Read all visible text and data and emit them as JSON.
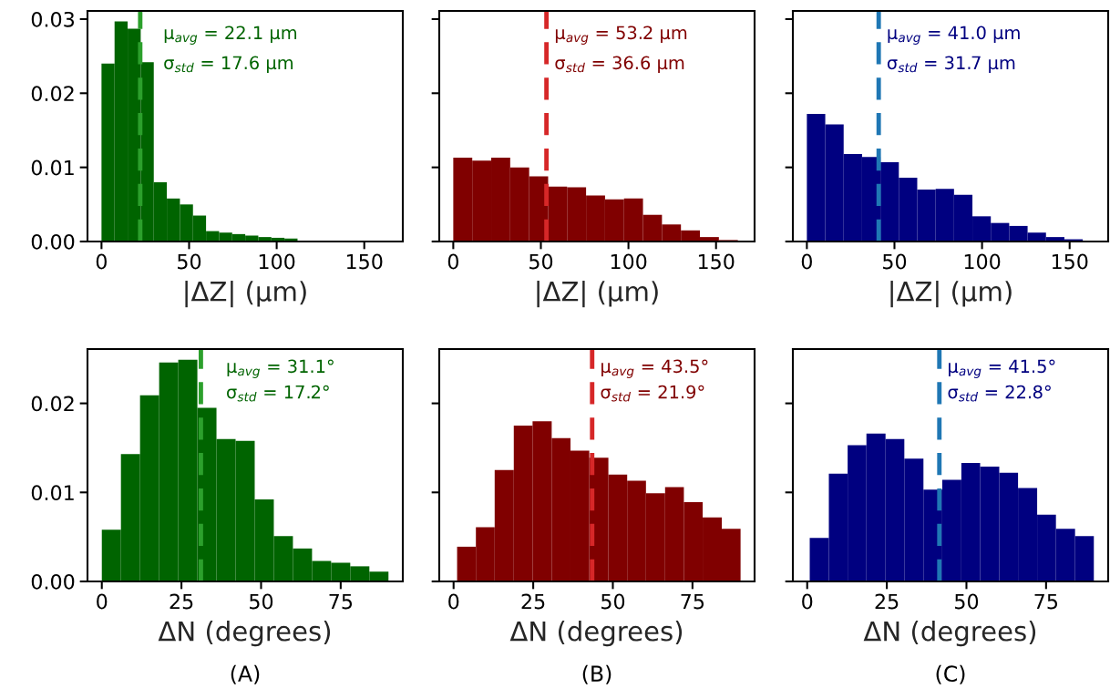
{
  "chart_data": [
    {
      "type": "histogram",
      "xlabel": "|ΔZ| (µm)",
      "color": "#006400",
      "bins": [
        0,
        7.46,
        14.92,
        22.38,
        29.84,
        37.3,
        44.76,
        52.22,
        59.68,
        67.14,
        74.6,
        82.06,
        89.52,
        96.98,
        104.44,
        111.9
      ],
      "values": [
        0.024,
        0.0297,
        0.0287,
        0.0242,
        0.008,
        0.0058,
        0.005,
        0.0035,
        0.0014,
        0.0012,
        0.001,
        0.0008,
        0.0006,
        0.0005,
        0.0004
      ],
      "xlim": [
        -8,
        172
      ],
      "xticks": [
        0,
        50,
        100,
        150
      ],
      "ylim": [
        0,
        0.0311
      ],
      "yticks": [
        {
          "value": 0,
          "label": "0.00"
        },
        {
          "value": 0.01,
          "label": "0.01"
        },
        {
          "value": 0.02,
          "label": "0.02"
        },
        {
          "value": 0.03,
          "label": "0.03"
        }
      ],
      "ref_lines": [
        {
          "axis": "x",
          "value": 22.1,
          "color": "#2ca02c",
          "line_style": "dashed"
        }
      ],
      "annotations": [
        "μ$_{avg}$ = 22.1 µm",
        "σ$_{std}$ = 17.6 µm"
      ]
    },
    {
      "type": "histogram",
      "xlabel": "|ΔZ| (µm)",
      "color": "#800000",
      "bins": [
        0,
        10.83,
        21.66,
        32.49,
        43.32,
        54.15,
        64.98,
        75.81,
        86.64,
        97.47,
        108.3,
        119.13,
        129.96,
        140.79,
        151.62,
        162.45
      ],
      "values": [
        0.0113,
        0.0109,
        0.0113,
        0.01,
        0.0088,
        0.0074,
        0.0073,
        0.0062,
        0.0057,
        0.0058,
        0.0036,
        0.0023,
        0.0015,
        0.0006,
        0.0002
      ],
      "xlim": [
        -8,
        172
      ],
      "xticks": [
        0,
        50,
        100,
        150
      ],
      "ylim": [
        0,
        0.0311
      ],
      "yticks": [
        {
          "value": 0,
          "label": null
        },
        {
          "value": 0.01,
          "label": null
        },
        {
          "value": 0.02,
          "label": null
        },
        {
          "value": 0.03,
          "label": null
        }
      ],
      "tick_labels": "x",
      "ref_lines": [
        {
          "axis": "x",
          "value": 53.2,
          "color": "#d62728",
          "line_style": "dashed"
        }
      ],
      "annotations": [
        "μ$_{avg}$ = 53.2 µm",
        "σ$_{std}$ = 36.6 µm"
      ]
    },
    {
      "type": "histogram",
      "xlabel": "|ΔZ| (µm)",
      "color": "#000080",
      "bins": [
        0,
        10.5,
        21,
        31.5,
        42,
        52.5,
        63,
        73.5,
        84,
        94.5,
        105,
        115.5,
        126,
        136.5,
        147,
        157.5
      ],
      "values": [
        0.0172,
        0.0158,
        0.0118,
        0.0114,
        0.0107,
        0.0086,
        0.007,
        0.0071,
        0.0063,
        0.0034,
        0.0025,
        0.0021,
        0.0012,
        0.0006,
        0.0003
      ],
      "xlim": [
        -8,
        172
      ],
      "xticks": [
        0,
        50,
        100,
        150
      ],
      "ylim": [
        0,
        0.0311
      ],
      "yticks": [
        {
          "value": 0,
          "label": null
        },
        {
          "value": 0.01,
          "label": null
        },
        {
          "value": 0.02,
          "label": null
        },
        {
          "value": 0.03,
          "label": null
        }
      ],
      "tick_labels": "x",
      "ref_lines": [
        {
          "axis": "x",
          "value": 41.0,
          "color": "#1f77b4",
          "line_style": "dashed"
        }
      ],
      "annotations": [
        "μ$_{avg}$ = 41.0 µm",
        "σ$_{std}$ = 31.7 µm"
      ]
    },
    {
      "type": "histogram",
      "xlabel": "ΔN (degrees)",
      "color": "#006400",
      "bins": [
        0,
        6,
        12,
        18,
        24,
        30,
        36,
        42,
        48,
        54,
        60,
        66,
        72,
        78,
        84,
        90
      ],
      "values": [
        0.0058,
        0.0143,
        0.0209,
        0.0246,
        0.0249,
        0.0195,
        0.016,
        0.0158,
        0.0092,
        0.0051,
        0.0037,
        0.0023,
        0.0021,
        0.0017,
        0.0011
      ],
      "xlim": [
        -4.5,
        94.5
      ],
      "xticks": [
        0,
        25,
        50,
        75
      ],
      "ylim": [
        0,
        0.0261
      ],
      "yticks": [
        {
          "value": 0,
          "label": "0.00"
        },
        {
          "value": 0.01,
          "label": "0.01"
        },
        {
          "value": 0.02,
          "label": "0.02"
        }
      ],
      "ref_lines": [
        {
          "axis": "x",
          "value": 31.1,
          "color": "#2ca02c",
          "line_style": "dashed"
        }
      ],
      "annotations": [
        "μ$_{avg}$ = 31.1°",
        "σ$_{std}$ = 17.2°",
        "(A)"
      ]
    },
    {
      "type": "histogram",
      "xlabel": "ΔN (degrees)",
      "color": "#800000",
      "bins": [
        1.1,
        7.0,
        12.9,
        18.9,
        24.8,
        30.8,
        36.7,
        42.6,
        48.6,
        54.5,
        60.4,
        66.4,
        72.3,
        78.2,
        84.2,
        90.1
      ],
      "values": [
        0.0039,
        0.0061,
        0.0125,
        0.0175,
        0.018,
        0.0161,
        0.0147,
        0.0139,
        0.012,
        0.0113,
        0.0099,
        0.0106,
        0.0089,
        0.0072,
        0.0059
      ],
      "xlim": [
        -4.5,
        94.5
      ],
      "xticks": [
        0,
        25,
        50,
        75
      ],
      "ylim": [
        0,
        0.0261
      ],
      "yticks": [
        {
          "value": 0,
          "label": null
        },
        {
          "value": 0.01,
          "label": null
        },
        {
          "value": 0.02,
          "label": null
        }
      ],
      "tick_labels": "x",
      "ref_lines": [
        {
          "axis": "x",
          "value": 43.5,
          "color": "#d62728",
          "line_style": "dashed"
        }
      ],
      "annotations": [
        "μ$_{avg}$ = 43.5°",
        "σ$_{std}$ = 21.9°",
        "(B)"
      ]
    },
    {
      "type": "histogram",
      "xlabel": "ΔN (degrees)",
      "color": "#000080",
      "bins": [
        0.8,
        6.8,
        12.7,
        18.6,
        24.6,
        30.5,
        36.5,
        42.4,
        48.4,
        54.3,
        60.3,
        66.2,
        72.2,
        78.1,
        84.1,
        90.0
      ],
      "values": [
        0.0049,
        0.0121,
        0.0153,
        0.0166,
        0.016,
        0.0138,
        0.0103,
        0.0114,
        0.0133,
        0.0129,
        0.0122,
        0.0105,
        0.0075,
        0.0059,
        0.0051
      ],
      "xlim": [
        -4.5,
        94.5
      ],
      "xticks": [
        0,
        25,
        50,
        75
      ],
      "ylim": [
        0,
        0.0261
      ],
      "yticks": [
        {
          "value": 0,
          "label": null
        },
        {
          "value": 0.01,
          "label": null
        },
        {
          "value": 0.02,
          "label": null
        }
      ],
      "tick_labels": "x",
      "ref_lines": [
        {
          "axis": "x",
          "value": 41.5,
          "color": "#1f77b4",
          "line_style": "dashed"
        }
      ],
      "annotations": [
        "μ$_{avg}$ = 41.5°",
        "σ$_{std}$ = 22.8°",
        "(C)"
      ]
    }
  ]
}
